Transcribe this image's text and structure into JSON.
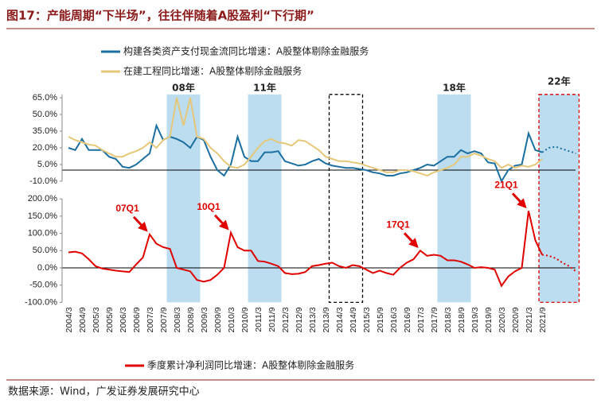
{
  "title": "图17：产能周期“下半场”，往往伴随着A股盈利“下行期”",
  "source": "数据来源：Wind，广发证券发展研究中心",
  "bands": [
    {
      "label": "08年",
      "from": 15,
      "to": 19,
      "fill": "#bcdcef",
      "border": "none"
    },
    {
      "label": "11年",
      "from": 27,
      "to": 31,
      "fill": "#bcdcef",
      "border": "none"
    },
    {
      "from": 39,
      "to": 43,
      "fill": "none",
      "border": "#000000",
      "dashed": true
    },
    {
      "label": "18年",
      "from": 55,
      "to": 59,
      "fill": "#bcdcef",
      "border": "none"
    },
    {
      "label": "22年",
      "from": 70,
      "to": 75,
      "fill": "#bcdcef",
      "border": "#e00000",
      "dashed": true
    }
  ],
  "chart_data": [
    {
      "type": "line",
      "ylim": [
        -10,
        68
      ],
      "yticks": [
        {
          "value": 65,
          "label": "65.0%"
        },
        {
          "value": 50,
          "label": "50.0%"
        },
        {
          "value": 35,
          "label": "35.0%"
        },
        {
          "value": 20,
          "label": "20.0%"
        },
        {
          "value": 5,
          "label": "5.0%"
        },
        {
          "value": -10,
          "label": "-10.0%"
        }
      ],
      "series": [
        {
          "name": "构建各类资产支付现金流同比增速：A股整体剔除金融服务",
          "color": "#1a6fa0",
          "values": [
            20,
            18,
            28,
            18,
            18,
            18,
            12,
            10,
            3,
            2,
            5,
            10,
            15,
            40,
            27,
            30,
            28,
            25,
            20,
            30,
            27,
            12,
            0,
            -5,
            5,
            30,
            12,
            8,
            8,
            16,
            16,
            17,
            8,
            6,
            4,
            5,
            8,
            10,
            6,
            4,
            3,
            2,
            2,
            1,
            0,
            -2,
            -3,
            -5,
            -5,
            -3,
            -2,
            0,
            2,
            5,
            4,
            8,
            12,
            12,
            18,
            15,
            17,
            15,
            7,
            6,
            -10,
            0,
            4,
            5,
            33,
            18,
            16,
            null,
            null,
            null,
            null,
            null
          ]
        },
        {
          "color": "#1a6fa0",
          "dashed": true,
          "values": [
            null,
            null,
            null,
            null,
            null,
            null,
            null,
            null,
            null,
            null,
            null,
            null,
            null,
            null,
            null,
            null,
            null,
            null,
            null,
            null,
            null,
            null,
            null,
            null,
            null,
            null,
            null,
            null,
            null,
            null,
            null,
            null,
            null,
            null,
            null,
            null,
            null,
            null,
            null,
            null,
            null,
            null,
            null,
            null,
            null,
            null,
            null,
            null,
            null,
            null,
            null,
            null,
            null,
            null,
            null,
            null,
            null,
            null,
            null,
            null,
            null,
            null,
            null,
            null,
            null,
            null,
            null,
            null,
            null,
            null,
            16,
            20,
            21,
            19,
            17,
            15
          ]
        },
        {
          "name": "在建工程同比增速：A股整体剔除金融服务",
          "color": "#e6c77a",
          "values": [
            30,
            27,
            25,
            23,
            22,
            18,
            15,
            12,
            12,
            15,
            17,
            20,
            25,
            20,
            27,
            30,
            65,
            40,
            65,
            30,
            28,
            20,
            15,
            8,
            3,
            2,
            5,
            12,
            20,
            26,
            28,
            25,
            24,
            22,
            27,
            26,
            22,
            18,
            12,
            10,
            8,
            8,
            7,
            6,
            4,
            2,
            0,
            -2,
            -2,
            0,
            0,
            -1,
            -3,
            -5,
            -2,
            0,
            2,
            5,
            12,
            12,
            15,
            13,
            10,
            8,
            2,
            5,
            2,
            4,
            3,
            5,
            10,
            null,
            null,
            null,
            null,
            null
          ]
        }
      ]
    },
    {
      "type": "line",
      "ylim": [
        -100,
        200
      ],
      "yticks": [
        {
          "value": 200,
          "label": "200.0%"
        },
        {
          "value": 150,
          "label": "150.0%"
        },
        {
          "value": 100,
          "label": "100.0%"
        },
        {
          "value": 50,
          "label": "50.0%"
        },
        {
          "value": 0,
          "label": "0.0%"
        },
        {
          "value": -50,
          "label": "-50.0%"
        },
        {
          "value": -100,
          "label": "-100.0%"
        }
      ],
      "categories": [
        "2004/3",
        null,
        "2004/9",
        null,
        "2005/3",
        null,
        "2005/9",
        null,
        "2006/3",
        null,
        "2006/9",
        null,
        "2007/3",
        null,
        "2007/9",
        null,
        "2008/3",
        null,
        "2008/9",
        null,
        "2009/3",
        null,
        "2009/9",
        null,
        "2010/3",
        null,
        "2010/9",
        null,
        "2011/3",
        null,
        "2011/9",
        null,
        "2012/3",
        null,
        "2012/9",
        null,
        "2013/3",
        null,
        "2013/9",
        null,
        "2014/3",
        null,
        "2014/9",
        null,
        "2015/3",
        null,
        "2015/9",
        null,
        "2016/3",
        null,
        "2016/9",
        null,
        "2017/3",
        null,
        "2017/9",
        null,
        "2018/3",
        null,
        "2018/9",
        null,
        "2019/3",
        null,
        "2019/9",
        null,
        "2020/3",
        null,
        "2020/9",
        null,
        "2021/3",
        null,
        "2021/9",
        null,
        null,
        null,
        null,
        null
      ],
      "series": [
        {
          "name": "季度累计净利润同比增速：A股整体剔除金融服务",
          "color": "#e00000",
          "values": [
            45,
            47,
            42,
            25,
            5,
            -2,
            -5,
            -8,
            -10,
            -12,
            10,
            30,
            97,
            70,
            60,
            55,
            0,
            -5,
            -10,
            -35,
            -40,
            -35,
            -20,
            0,
            102,
            60,
            50,
            50,
            20,
            18,
            12,
            5,
            -15,
            -18,
            -17,
            -12,
            5,
            8,
            12,
            15,
            5,
            0,
            8,
            5,
            -5,
            -15,
            -8,
            -15,
            -20,
            0,
            15,
            25,
            50,
            35,
            38,
            35,
            22,
            22,
            18,
            10,
            0,
            2,
            0,
            -5,
            -52,
            -25,
            -10,
            0,
            165,
            80,
            38,
            null,
            null,
            null,
            null,
            null
          ]
        },
        {
          "color": "#e00000",
          "dashed": true,
          "values": [
            null,
            null,
            null,
            null,
            null,
            null,
            null,
            null,
            null,
            null,
            null,
            null,
            null,
            null,
            null,
            null,
            null,
            null,
            null,
            null,
            null,
            null,
            null,
            null,
            null,
            null,
            null,
            null,
            null,
            null,
            null,
            null,
            null,
            null,
            null,
            null,
            null,
            null,
            null,
            null,
            null,
            null,
            null,
            null,
            null,
            null,
            null,
            null,
            null,
            null,
            null,
            null,
            null,
            null,
            null,
            null,
            null,
            null,
            null,
            null,
            null,
            null,
            null,
            null,
            null,
            null,
            null,
            null,
            null,
            null,
            38,
            35,
            28,
            15,
            5,
            -10
          ]
        }
      ],
      "annotations": [
        {
          "text": "07Q1",
          "point": 12
        },
        {
          "text": "10Q1",
          "point": 24
        },
        {
          "text": "17Q1",
          "point": 52
        },
        {
          "text": "21Q1",
          "point": 68
        }
      ]
    }
  ]
}
